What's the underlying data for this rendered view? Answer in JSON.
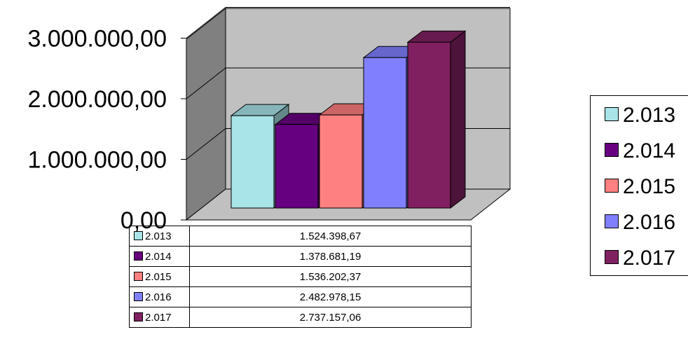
{
  "chart_data": {
    "type": "bar",
    "title": "",
    "xlabel": "",
    "ylabel": "",
    "ylim": [
      0,
      3000000
    ],
    "yticks": [
      0,
      1000000,
      2000000,
      3000000
    ],
    "ytick_labels": [
      "0,00",
      "1.000.000,00",
      "2.000.000,00",
      "3.000.000,00"
    ],
    "grid": true,
    "legend_position": "right",
    "series": [
      {
        "name": "2.013",
        "value": 1524398.67,
        "label": "1.524.398,67",
        "color": "#a8e4e8"
      },
      {
        "name": "2.014",
        "value": 1378681.19,
        "label": "1.378.681,19",
        "color": "#660080"
      },
      {
        "name": "2.015",
        "value": 1536202.37,
        "label": "1.536.202,37",
        "color": "#ff8080"
      },
      {
        "name": "2.016",
        "value": 2482978.15,
        "label": "2.482.978,15",
        "color": "#8080ff"
      },
      {
        "name": "2.017",
        "value": 2737157.06,
        "label": "2.737.157,06",
        "color": "#802060"
      }
    ]
  }
}
